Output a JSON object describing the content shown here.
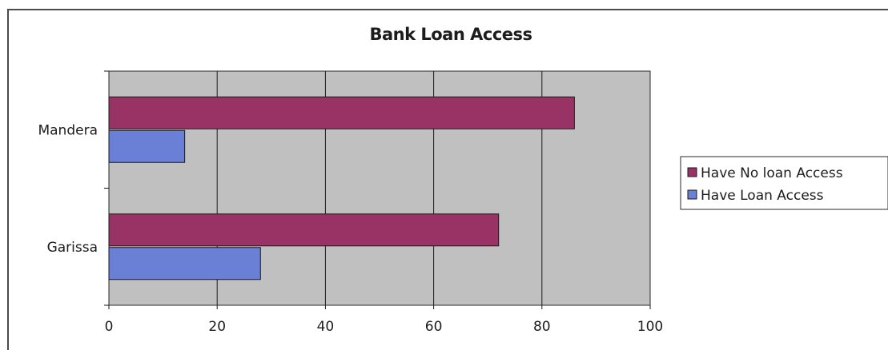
{
  "chart_data": {
    "type": "bar",
    "orientation": "horizontal",
    "title": "Bank Loan Access",
    "categories": [
      "Mandera",
      "Garissa"
    ],
    "series": [
      {
        "name": "Have No loan Access",
        "values": [
          86,
          72
        ],
        "color": "#993366"
      },
      {
        "name": "Have Loan Access",
        "values": [
          14,
          28
        ],
        "color": "#6a7fd6"
      }
    ],
    "xlim": [
      0,
      100
    ],
    "xticks": [
      0,
      20,
      40,
      60,
      80,
      100
    ],
    "grid": true,
    "plot_background": "#c0c0c0",
    "legend_position": "right",
    "legend_order": [
      0,
      1
    ]
  }
}
